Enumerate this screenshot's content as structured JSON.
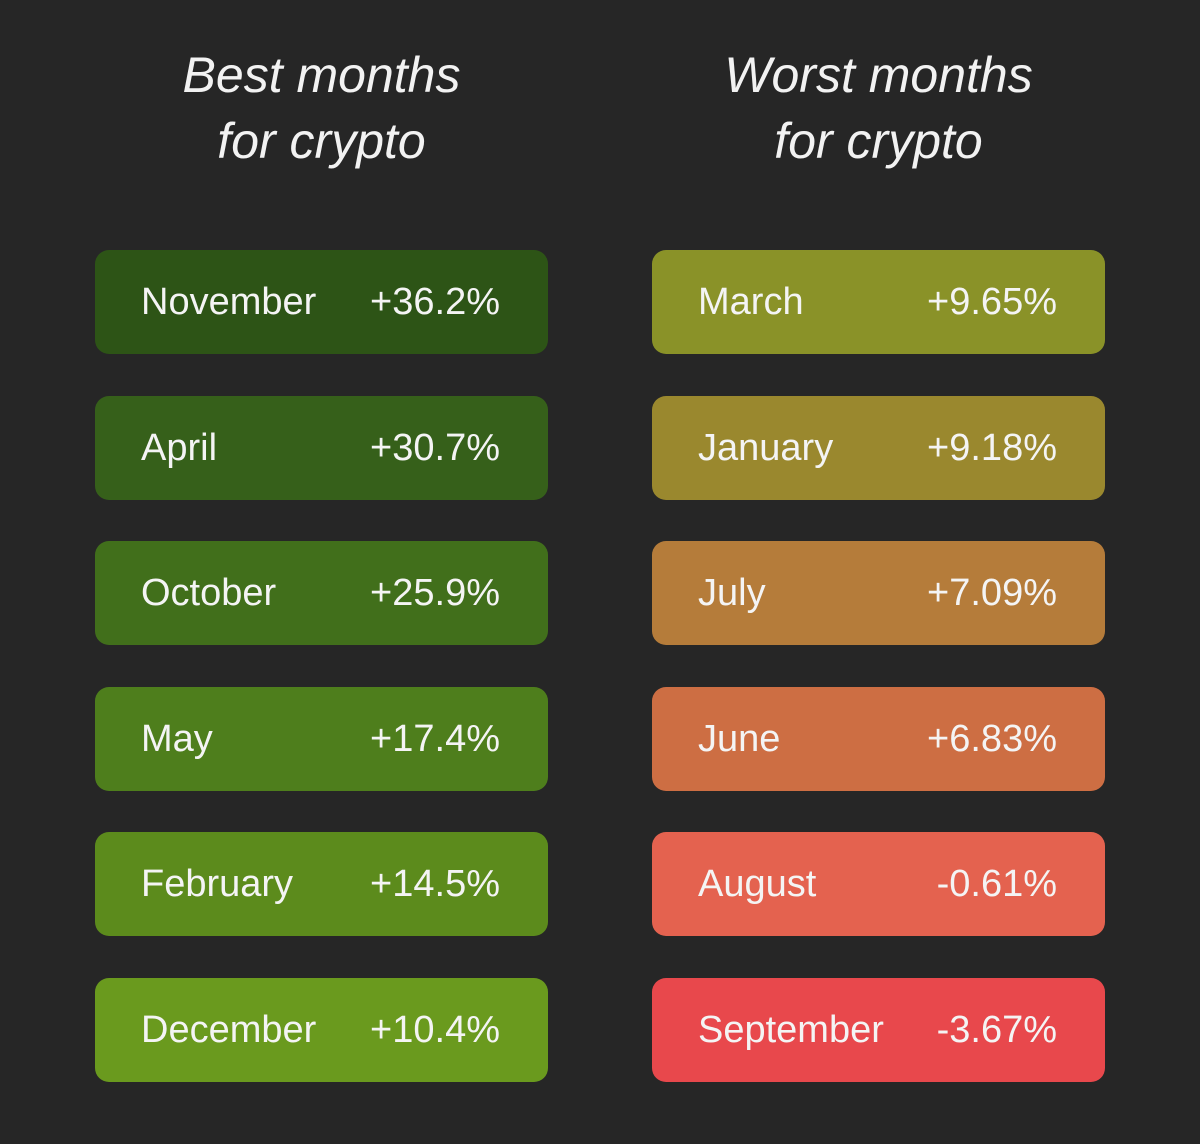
{
  "columns": [
    {
      "title": [
        "Best months",
        "for crypto"
      ],
      "rows": [
        {
          "month": "November",
          "value": "+36.2%",
          "color": "#2d5416"
        },
        {
          "month": "April",
          "value": "+30.7%",
          "color": "#36601a"
        },
        {
          "month": "October",
          "value": "+25.9%",
          "color": "#416f1b"
        },
        {
          "month": "May",
          "value": "+17.4%",
          "color": "#4e7e1c"
        },
        {
          "month": "February",
          "value": "+14.5%",
          "color": "#5c8b1c"
        },
        {
          "month": "December",
          "value": "+10.4%",
          "color": "#6a9a1e"
        }
      ]
    },
    {
      "title": [
        "Worst months",
        "for crypto"
      ],
      "rows": [
        {
          "month": "March",
          "value": "+9.65%",
          "color": "#8a9228"
        },
        {
          "month": "January",
          "value": "+9.18%",
          "color": "#9a882e"
        },
        {
          "month": "July",
          "value": "+7.09%",
          "color": "#b57c3a"
        },
        {
          "month": "June",
          "value": "+6.83%",
          "color": "#cd6e43"
        },
        {
          "month": "August",
          "value": "-0.61%",
          "color": "#e4624f"
        },
        {
          "month": "September",
          "value": "-3.67%",
          "color": "#e8484c"
        }
      ]
    }
  ]
}
